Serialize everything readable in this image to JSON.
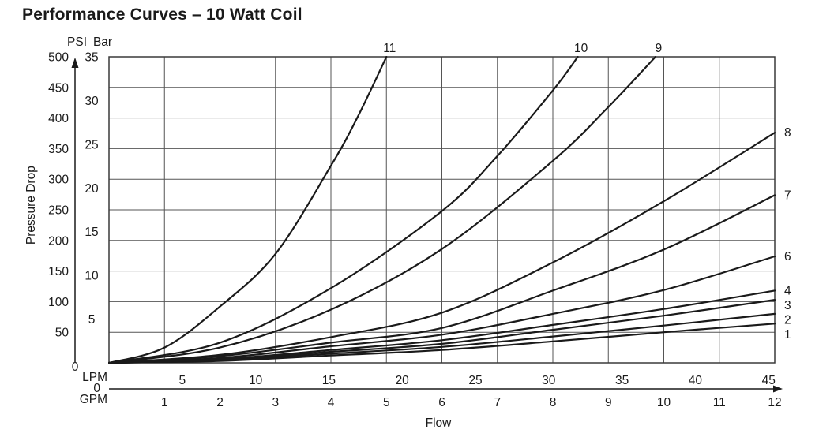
{
  "title": "Performance Curves – 10 Watt Coil",
  "colors": {
    "background": "#ffffff",
    "text": "#1a1a1a",
    "curve": "#1a1a1a",
    "grid": "#555555",
    "frame": "#3a3a3a"
  },
  "chart_data": {
    "type": "line",
    "title": "Performance Curves – 10 Watt Coil",
    "xlabel": "Flow",
    "ylabel": "Pressure Drop",
    "grid": "on",
    "legend_position": "curve labels at top and right edges",
    "point_format": "[flow_gpm, pressure_drop_psi]",
    "x_axes": [
      {
        "unit": "LPM",
        "zero_label": "0",
        "ticks": [
          5,
          10,
          15,
          20,
          25,
          30,
          35,
          40,
          45
        ],
        "max": 45.42
      },
      {
        "unit": "GPM",
        "zero_label": "0",
        "ticks": [
          1,
          2,
          3,
          4,
          5,
          6,
          7,
          8,
          9,
          10,
          11,
          12
        ],
        "max": 12
      }
    ],
    "y_axes": [
      {
        "unit": "PSI",
        "zero_label": "0",
        "ticks": [
          50,
          100,
          150,
          200,
          250,
          300,
          350,
          400,
          450,
          500
        ],
        "range": [
          0,
          500
        ]
      },
      {
        "unit": "Bar",
        "ticks": [
          5,
          10,
          15,
          20,
          25,
          30,
          35
        ],
        "range": [
          0,
          35
        ]
      }
    ],
    "ylim": [
      0,
      500
    ],
    "xlim_gpm": [
      0,
      12
    ],
    "gridline_spacing": {
      "x_gpm": 1,
      "y_psi": 50
    },
    "series": [
      {
        "name": "1",
        "points": [
          [
            0,
            0
          ],
          [
            2,
            3
          ],
          [
            4,
            12
          ],
          [
            6,
            21
          ],
          [
            8,
            35
          ],
          [
            10,
            50
          ],
          [
            12,
            64
          ]
        ]
      },
      {
        "name": "2",
        "points": [
          [
            0,
            0
          ],
          [
            2,
            4
          ],
          [
            4,
            15
          ],
          [
            6,
            26
          ],
          [
            8,
            43
          ],
          [
            10,
            61
          ],
          [
            12,
            80
          ]
        ]
      },
      {
        "name": "3",
        "points": [
          [
            0,
            0
          ],
          [
            2,
            5
          ],
          [
            4,
            18
          ],
          [
            6,
            31
          ],
          [
            8,
            54
          ],
          [
            10,
            77
          ],
          [
            12,
            103
          ]
        ]
      },
      {
        "name": "4",
        "points": [
          [
            0,
            0
          ],
          [
            2,
            6
          ],
          [
            4,
            21
          ],
          [
            6,
            37
          ],
          [
            8,
            62
          ],
          [
            10,
            88
          ],
          [
            12,
            118
          ]
        ]
      },
      {
        "name": "6",
        "points": [
          [
            0,
            0
          ],
          [
            2,
            8
          ],
          [
            4,
            27
          ],
          [
            6,
            46
          ],
          [
            8,
            80
          ],
          [
            10,
            119
          ],
          [
            12,
            174
          ]
        ]
      },
      {
        "name": "7",
        "points": [
          [
            0,
            0
          ],
          [
            2,
            11
          ],
          [
            4,
            33
          ],
          [
            6,
            57
          ],
          [
            8,
            118
          ],
          [
            10,
            185
          ],
          [
            12,
            274
          ]
        ]
      },
      {
        "name": "8",
        "points": [
          [
            0,
            0
          ],
          [
            2,
            13
          ],
          [
            4,
            42
          ],
          [
            6,
            82
          ],
          [
            8,
            164
          ],
          [
            10,
            264
          ],
          [
            12,
            376
          ]
        ]
      },
      {
        "name": "9",
        "points": [
          [
            0,
            0
          ],
          [
            2,
            25
          ],
          [
            4,
            87
          ],
          [
            6,
            186
          ],
          [
            8,
            330
          ],
          [
            9,
            418
          ],
          [
            9.85,
            500
          ]
        ]
      },
      {
        "name": "10",
        "points": [
          [
            0,
            0
          ],
          [
            2,
            33
          ],
          [
            4,
            122
          ],
          [
            6,
            248
          ],
          [
            7,
            338
          ],
          [
            8,
            445
          ],
          [
            8.45,
            500
          ]
        ]
      },
      {
        "name": "11",
        "points": [
          [
            0,
            0
          ],
          [
            1,
            25
          ],
          [
            2,
            92
          ],
          [
            3,
            178
          ],
          [
            4,
            322
          ],
          [
            4.5,
            405
          ],
          [
            5,
            500
          ]
        ]
      }
    ]
  }
}
